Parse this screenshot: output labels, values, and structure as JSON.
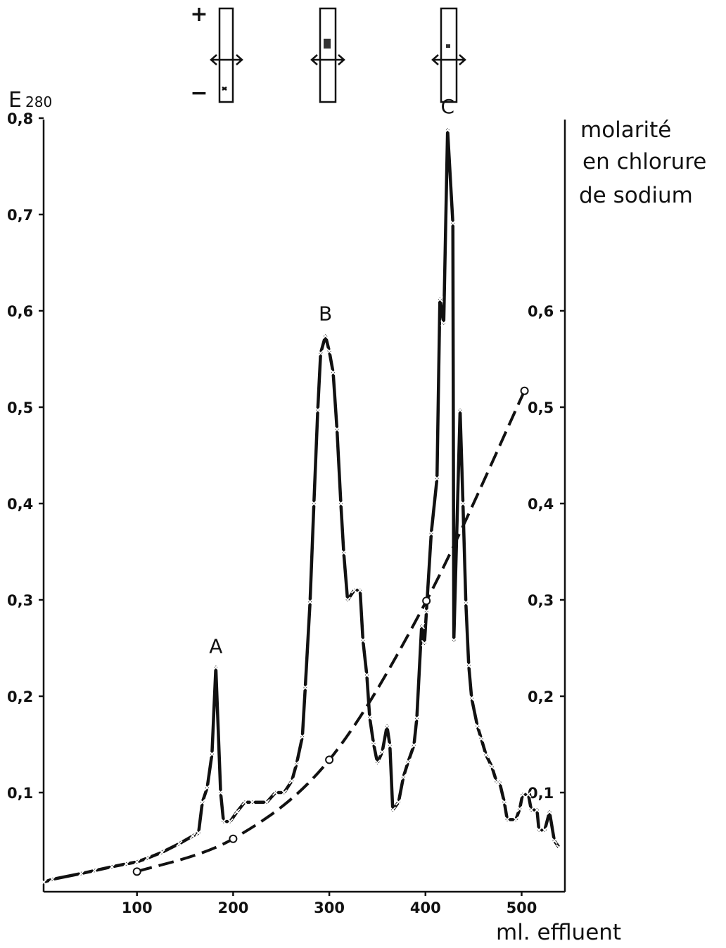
{
  "chart_data": {
    "type": "line",
    "y_label": "E",
    "y_label_sub": "280",
    "y2_label": [
      "molarité",
      "en chlorure",
      "de sodium"
    ],
    "x_label": "ml. effluent",
    "annotations": [
      {
        "text": "A",
        "x": 182,
        "y": 0.245
      },
      {
        "text": "B",
        "x": 296,
        "y": 0.59
      },
      {
        "text": "C",
        "x": 423,
        "y": 0.805
      }
    ],
    "strip_signs": [
      "+",
      "−"
    ],
    "xlim": [
      0,
      545
    ],
    "xticks": [
      100,
      200,
      300,
      400,
      500
    ],
    "ylim": [
      0,
      0.8
    ],
    "yticks": [
      {
        "value": 0.1,
        "label": "0,1"
      },
      {
        "value": 0.2,
        "label": "0,2"
      },
      {
        "value": 0.3,
        "label": "0,3"
      },
      {
        "value": 0.4,
        "label": "0,4"
      },
      {
        "value": 0.5,
        "label": "0,5"
      },
      {
        "value": 0.6,
        "label": "0,6"
      },
      {
        "value": 0.7,
        "label": "0,7"
      },
      {
        "value": 0.8,
        "label": "0,8"
      }
    ],
    "y2lim": [
      0,
      0.8
    ],
    "y2ticks": [
      {
        "value": 0.1,
        "label": "0,1"
      },
      {
        "value": 0.2,
        "label": "0,2"
      },
      {
        "value": 0.3,
        "label": "0,3"
      },
      {
        "value": 0.4,
        "label": "0,4"
      },
      {
        "value": 0.5,
        "label": "0,5"
      },
      {
        "value": 0.6,
        "label": "0,6"
      }
    ],
    "series": [
      {
        "color": "#111111",
        "line_style": "solid",
        "marker": "x",
        "x": [
          3,
          12,
          42,
          56,
          74,
          89,
          100,
          111,
          126,
          144,
          158,
          164,
          168,
          173,
          178,
          182,
          187,
          190,
          197,
          204,
          212,
          220,
          235,
          244,
          253,
          261,
          266,
          272,
          275,
          280,
          284,
          288,
          291,
          296,
          300,
          304,
          308,
          312,
          315,
          319,
          326,
          332,
          335,
          339,
          342,
          346,
          350,
          355,
          360,
          363,
          366,
          372,
          377,
          382,
          388,
          391,
          396,
          399,
          401,
          406,
          412,
          415,
          419,
          423,
          428.5,
          429.5,
          436,
          439,
          442,
          445,
          448,
          454,
          458,
          463,
          469,
          474,
          477,
          482,
          485,
          494,
          498,
          501,
          507,
          510,
          516,
          518,
          524,
          529,
          534,
          539
        ],
        "values": [
          0.007,
          0.01,
          0.016,
          0.019,
          0.023,
          0.026,
          0.028,
          0.032,
          0.038,
          0.047,
          0.055,
          0.058,
          0.09,
          0.105,
          0.14,
          0.23,
          0.1,
          0.07,
          0.07,
          0.08,
          0.09,
          0.09,
          0.09,
          0.1,
          0.1,
          0.112,
          0.13,
          0.158,
          0.209,
          0.298,
          0.4,
          0.497,
          0.556,
          0.574,
          0.558,
          0.536,
          0.477,
          0.4,
          0.349,
          0.3,
          0.31,
          0.31,
          0.258,
          0.222,
          0.178,
          0.151,
          0.131,
          0.142,
          0.169,
          0.149,
          0.082,
          0.09,
          0.116,
          0.132,
          0.149,
          0.177,
          0.273,
          0.255,
          0.288,
          0.369,
          0.426,
          0.612,
          0.587,
          0.788,
          0.691,
          0.258,
          0.497,
          0.4,
          0.297,
          0.232,
          0.198,
          0.169,
          0.156,
          0.139,
          0.127,
          0.111,
          0.111,
          0.09,
          0.072,
          0.072,
          0.083,
          0.098,
          0.098,
          0.082,
          0.082,
          0.061,
          0.061,
          0.08,
          0.05,
          0.043
        ]
      },
      {
        "color": "#111111",
        "line_style": "dashed",
        "marker": "o",
        "axis": "y2",
        "x": [
          100,
          200,
          300,
          401,
          503
        ],
        "values": [
          0.018,
          0.052,
          0.134,
          0.299,
          0.517
        ]
      }
    ]
  }
}
